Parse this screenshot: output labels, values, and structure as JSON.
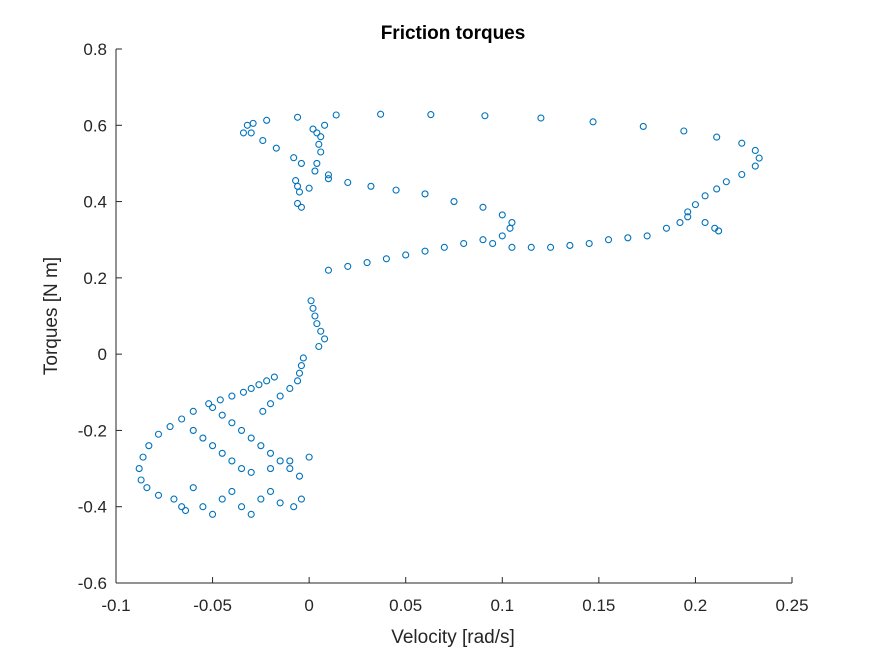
{
  "chart_data": {
    "type": "scatter",
    "title": "Friction torques",
    "xlabel": "Velocity [rad/s]",
    "ylabel": "Torques [N m]",
    "xlim": [
      -0.1,
      0.25
    ],
    "ylim": [
      -0.6,
      0.8
    ],
    "xticks": [
      -0.1,
      -0.05,
      0,
      0.05,
      0.1,
      0.15,
      0.2,
      0.25
    ],
    "xtick_labels": [
      "-0.1",
      "-0.05",
      "0",
      "0.05",
      "0.1",
      "0.15",
      "0.2",
      "0.25"
    ],
    "yticks": [
      -0.6,
      -0.4,
      -0.2,
      0,
      0.2,
      0.4,
      0.6,
      0.8
    ],
    "ytick_labels": [
      "-0.6",
      "-0.4",
      "-0.2",
      "0",
      "0.2",
      "0.4",
      "0.6",
      "0.8"
    ],
    "grid": false,
    "marker": "open-circle",
    "color": "#0072BD",
    "series": [
      {
        "points": [
          [
            -0.034,
            0.58
          ],
          [
            -0.032,
            0.6
          ],
          [
            -0.029,
            0.605
          ],
          [
            -0.022,
            0.613
          ],
          [
            -0.006,
            0.621
          ],
          [
            0.014,
            0.627
          ],
          [
            0.037,
            0.629
          ],
          [
            0.063,
            0.628
          ],
          [
            0.091,
            0.625
          ],
          [
            0.12,
            0.619
          ],
          [
            0.147,
            0.609
          ],
          [
            0.173,
            0.597
          ],
          [
            0.194,
            0.585
          ],
          [
            0.211,
            0.569
          ],
          [
            0.224,
            0.553
          ],
          [
            0.231,
            0.534
          ],
          [
            0.233,
            0.514
          ],
          [
            0.231,
            0.493
          ],
          [
            0.224,
            0.471
          ],
          [
            0.216,
            0.452
          ],
          [
            0.211,
            0.433
          ],
          [
            0.205,
            0.415
          ],
          [
            0.2,
            0.392
          ],
          [
            0.196,
            0.373
          ],
          [
            0.205,
            0.345
          ],
          [
            0.21,
            0.33
          ],
          [
            0.212,
            0.323
          ],
          [
            -0.03,
            0.58
          ],
          [
            -0.024,
            0.56
          ],
          [
            -0.017,
            0.54
          ],
          [
            -0.008,
            0.515
          ],
          [
            -0.004,
            0.5
          ],
          [
            0.003,
            0.48
          ],
          [
            0.01,
            0.47
          ],
          [
            -0.007,
            0.455
          ],
          [
            -0.006,
            0.44
          ],
          [
            -0.005,
            0.425
          ],
          [
            -0.006,
            0.395
          ],
          [
            -0.004,
            0.385
          ],
          [
            0.0,
            0.435
          ],
          [
            0.01,
            0.46
          ],
          [
            0.02,
            0.45
          ],
          [
            0.032,
            0.44
          ],
          [
            0.045,
            0.43
          ],
          [
            0.06,
            0.42
          ],
          [
            0.075,
            0.4
          ],
          [
            0.09,
            0.385
          ],
          [
            0.1,
            0.365
          ],
          [
            0.105,
            0.345
          ],
          [
            0.104,
            0.33
          ],
          [
            0.1,
            0.31
          ],
          [
            0.09,
            0.3
          ],
          [
            0.08,
            0.29
          ],
          [
            0.07,
            0.28
          ],
          [
            0.06,
            0.27
          ],
          [
            0.05,
            0.26
          ],
          [
            0.04,
            0.25
          ],
          [
            0.03,
            0.24
          ],
          [
            0.02,
            0.23
          ],
          [
            0.01,
            0.22
          ],
          [
            0.095,
            0.29
          ],
          [
            0.105,
            0.28
          ],
          [
            0.115,
            0.28
          ],
          [
            0.125,
            0.28
          ],
          [
            0.135,
            0.285
          ],
          [
            0.145,
            0.29
          ],
          [
            0.155,
            0.3
          ],
          [
            0.165,
            0.305
          ],
          [
            0.175,
            0.31
          ],
          [
            0.185,
            0.33
          ],
          [
            0.192,
            0.345
          ],
          [
            0.196,
            0.36
          ],
          [
            0.002,
            0.59
          ],
          [
            0.004,
            0.58
          ],
          [
            0.006,
            0.57
          ],
          [
            0.008,
            0.6
          ],
          [
            0.005,
            0.55
          ],
          [
            0.006,
            0.53
          ],
          [
            0.004,
            0.5
          ],
          [
            0.001,
            0.14
          ],
          [
            0.002,
            0.12
          ],
          [
            0.003,
            0.1
          ],
          [
            0.004,
            0.08
          ],
          [
            0.006,
            0.06
          ],
          [
            0.008,
            0.04
          ],
          [
            0.005,
            0.02
          ],
          [
            -0.003,
            -0.01
          ],
          [
            -0.004,
            -0.03
          ],
          [
            -0.005,
            -0.05
          ],
          [
            -0.006,
            -0.07
          ],
          [
            -0.01,
            -0.09
          ],
          [
            -0.015,
            -0.11
          ],
          [
            -0.02,
            -0.13
          ],
          [
            -0.024,
            -0.15
          ],
          [
            -0.018,
            -0.06
          ],
          [
            -0.022,
            -0.07
          ],
          [
            -0.026,
            -0.08
          ],
          [
            -0.03,
            -0.09
          ],
          [
            -0.034,
            -0.1
          ],
          [
            -0.04,
            -0.11
          ],
          [
            -0.046,
            -0.12
          ],
          [
            -0.052,
            -0.13
          ],
          [
            -0.06,
            -0.15
          ],
          [
            -0.066,
            -0.17
          ],
          [
            -0.072,
            -0.19
          ],
          [
            -0.078,
            -0.21
          ],
          [
            -0.083,
            -0.24
          ],
          [
            -0.086,
            -0.27
          ],
          [
            -0.088,
            -0.3
          ],
          [
            -0.087,
            -0.33
          ],
          [
            -0.084,
            -0.35
          ],
          [
            -0.078,
            -0.37
          ],
          [
            -0.07,
            -0.38
          ],
          [
            -0.066,
            -0.4
          ],
          [
            -0.064,
            -0.41
          ],
          [
            -0.06,
            -0.35
          ],
          [
            -0.055,
            -0.4
          ],
          [
            -0.05,
            -0.42
          ],
          [
            -0.045,
            -0.38
          ],
          [
            -0.04,
            -0.36
          ],
          [
            -0.035,
            -0.4
          ],
          [
            -0.03,
            -0.42
          ],
          [
            -0.025,
            -0.38
          ],
          [
            -0.02,
            -0.36
          ],
          [
            -0.015,
            -0.39
          ],
          [
            -0.008,
            -0.4
          ],
          [
            -0.004,
            -0.38
          ],
          [
            -0.06,
            -0.2
          ],
          [
            -0.055,
            -0.22
          ],
          [
            -0.05,
            -0.24
          ],
          [
            -0.045,
            -0.26
          ],
          [
            -0.04,
            -0.28
          ],
          [
            -0.035,
            -0.3
          ],
          [
            -0.03,
            -0.31
          ],
          [
            -0.02,
            -0.3
          ],
          [
            -0.01,
            -0.28
          ],
          [
            0.0,
            -0.27
          ],
          [
            -0.05,
            -0.14
          ],
          [
            -0.045,
            -0.16
          ],
          [
            -0.04,
            -0.18
          ],
          [
            -0.035,
            -0.2
          ],
          [
            -0.03,
            -0.22
          ],
          [
            -0.025,
            -0.24
          ],
          [
            -0.02,
            -0.26
          ],
          [
            -0.015,
            -0.28
          ],
          [
            -0.01,
            -0.3
          ],
          [
            -0.005,
            -0.32
          ]
        ]
      }
    ]
  }
}
